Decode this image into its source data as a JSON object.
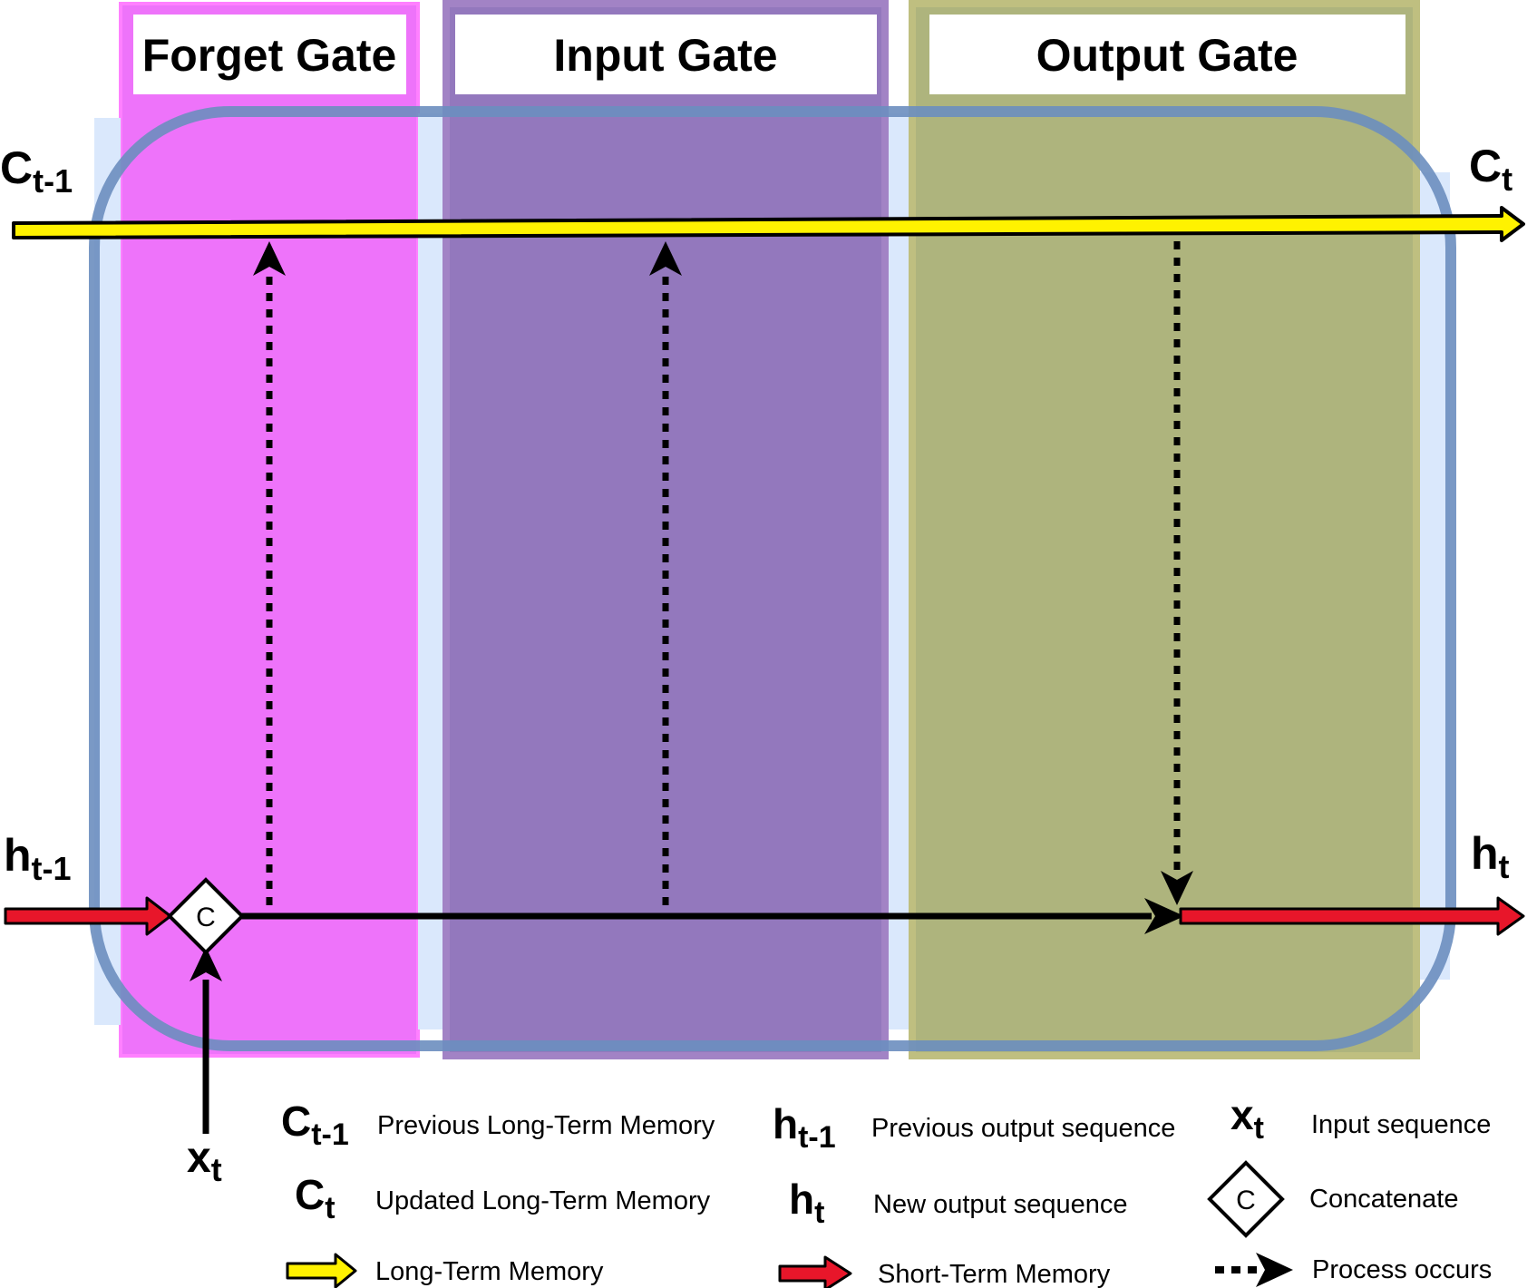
{
  "gates": {
    "forget": {
      "title": "Forget Gate",
      "color": "#EB5CF8"
    },
    "input": {
      "title": "Input Gate",
      "color": "#8A66B6"
    },
    "output": {
      "title": "Output Gate",
      "color": "#A6AE6E"
    }
  },
  "cell_border_color": "#6C8EBF",
  "cell_fill_color": "#DAE8FC",
  "labels": {
    "c_prev": {
      "base": "C",
      "sub": "t-1"
    },
    "c_next": {
      "base": "C",
      "sub": "t"
    },
    "h_prev": {
      "base": "h",
      "sub": "t-1"
    },
    "h_next": {
      "base": "h",
      "sub": "t"
    },
    "x_in": {
      "base": "x",
      "sub": "t"
    },
    "concat": "C"
  },
  "legend": {
    "c_prev": {
      "base": "C",
      "sub": "t-1",
      "text": "Previous Long-Term Memory"
    },
    "c_next": {
      "base": "C",
      "sub": "t",
      "text": "Updated Long-Term Memory"
    },
    "long_term": {
      "text": "Long-Term Memory",
      "color": "#FFF200"
    },
    "h_prev": {
      "base": "h",
      "sub": "t-1",
      "text": "Previous output sequence"
    },
    "h_next": {
      "base": "h",
      "sub": "t",
      "text": "New output sequence"
    },
    "short_term": {
      "text": "Short-Term Memory",
      "color": "#E8162A"
    },
    "x_in": {
      "base": "x",
      "sub": "t",
      "text": "Input sequence"
    },
    "concat": {
      "letter": "C",
      "text": "Concatenate"
    },
    "process": {
      "text": "Process occurs"
    }
  }
}
